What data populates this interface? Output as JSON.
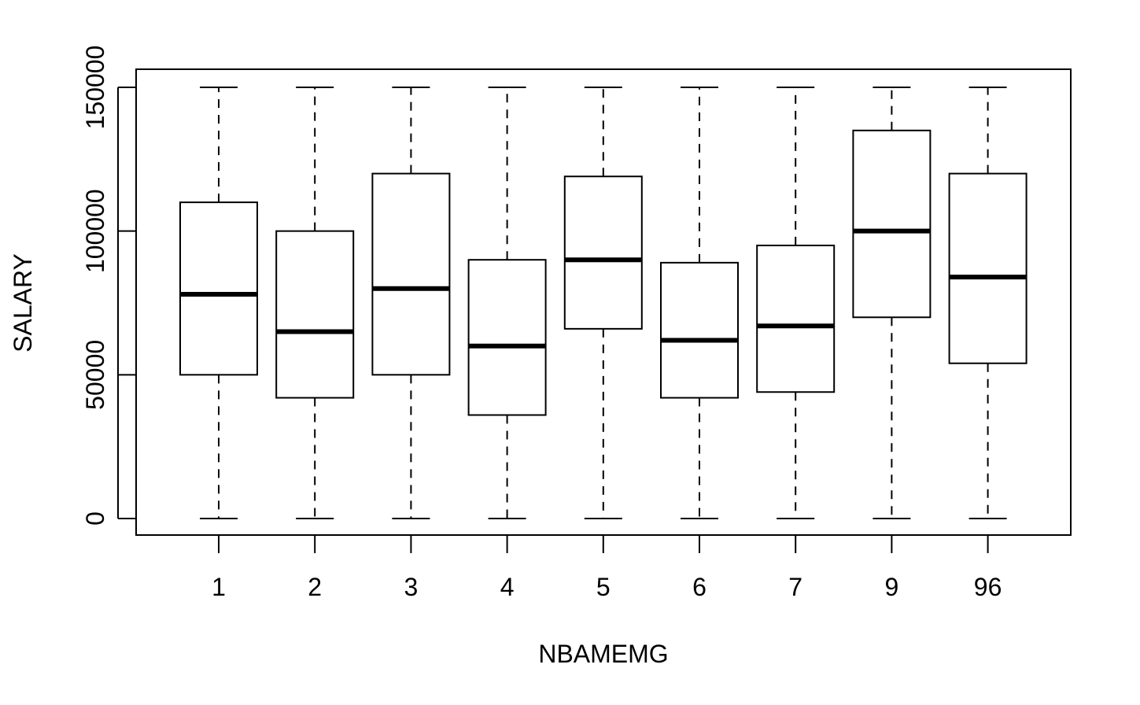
{
  "chart_data": {
    "type": "boxplot",
    "title": "",
    "xlabel": "NBAMEMG",
    "ylabel": "SALARY",
    "ylim": [
      -6000,
      150000
    ],
    "y_ticks": [
      {
        "value": 0,
        "label": "0"
      },
      {
        "value": 50000,
        "label": "50000"
      },
      {
        "value": 100000,
        "label": "100000"
      },
      {
        "value": 150000,
        "label": "150000"
      }
    ],
    "categories": [
      "1",
      "2",
      "3",
      "4",
      "5",
      "6",
      "7",
      "9",
      "96"
    ],
    "boxes": [
      {
        "category": "1",
        "min": 0,
        "q1": 50000,
        "median": 78000,
        "q3": 110000,
        "max": 150000
      },
      {
        "category": "2",
        "min": 0,
        "q1": 42000,
        "median": 65000,
        "q3": 100000,
        "max": 150000
      },
      {
        "category": "3",
        "min": 0,
        "q1": 50000,
        "median": 80000,
        "q3": 120000,
        "max": 150000
      },
      {
        "category": "4",
        "min": 0,
        "q1": 36000,
        "median": 60000,
        "q3": 90000,
        "max": 150000
      },
      {
        "category": "5",
        "min": 0,
        "q1": 66000,
        "median": 90000,
        "q3": 119000,
        "max": 150000
      },
      {
        "category": "6",
        "min": 0,
        "q1": 42000,
        "median": 62000,
        "q3": 89000,
        "max": 150000
      },
      {
        "category": "7",
        "min": 0,
        "q1": 44000,
        "median": 67000,
        "q3": 95000,
        "max": 150000
      },
      {
        "category": "9",
        "min": 0,
        "q1": 70000,
        "median": 100000,
        "q3": 135000,
        "max": 150000
      },
      {
        "category": "96",
        "min": 0,
        "q1": 54000,
        "median": 84000,
        "q3": 120000,
        "max": 150000
      }
    ],
    "grid": false,
    "colors": {
      "box_fill": "#ffffff",
      "stroke": "#000000"
    }
  }
}
